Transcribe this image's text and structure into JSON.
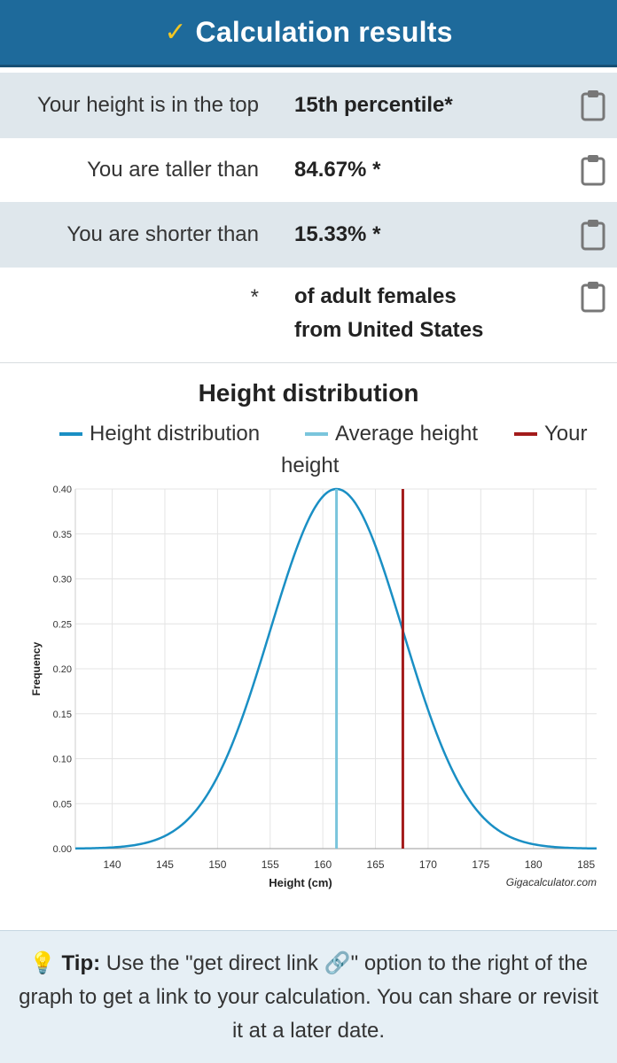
{
  "header": {
    "title": "Calculation results"
  },
  "results": [
    {
      "label": "Your height is in the top",
      "value": "15th percentile*",
      "shaded": true
    },
    {
      "label": "You are taller than",
      "value": "84.67% *",
      "shaded": false
    },
    {
      "label": "You are shorter than",
      "value": "15.33% *",
      "shaded": true
    }
  ],
  "footnote": {
    "label": "*",
    "line1": "of adult females",
    "line2": "from United States"
  },
  "legend": {
    "distribution": "Height distribution",
    "average": "Average height",
    "your_line1": "Your",
    "your_line2": "height"
  },
  "chart_data": {
    "type": "line",
    "title": "Height distribution",
    "xlabel": "Height (cm)",
    "ylabel": "Frequency",
    "xlim": [
      136.5,
      186
    ],
    "ylim": [
      0,
      0.4
    ],
    "xticks": [
      140,
      145,
      150,
      155,
      160,
      165,
      170,
      175,
      180,
      185
    ],
    "yticks": [
      "0.00",
      "0.05",
      "0.10",
      "0.15",
      "0.20",
      "0.25",
      "0.30",
      "0.35",
      "0.40"
    ],
    "mean": 161.3,
    "std_dev": 6.3,
    "peak": 0.4,
    "average_height": 161.3,
    "your_height": 167.6,
    "credit": "Gigacalculator.com",
    "colors": {
      "distribution": "#1a8fc4",
      "average": "#7ac5dc",
      "your": "#a31b1b"
    }
  },
  "tip": {
    "icon": "lightbulb-icon",
    "label": "Tip:",
    "text_before": " Use the \"get direct link ",
    "text_after": "\" option to the right of the graph to get a link to your calculation. You can share or revisit it at a later date."
  }
}
